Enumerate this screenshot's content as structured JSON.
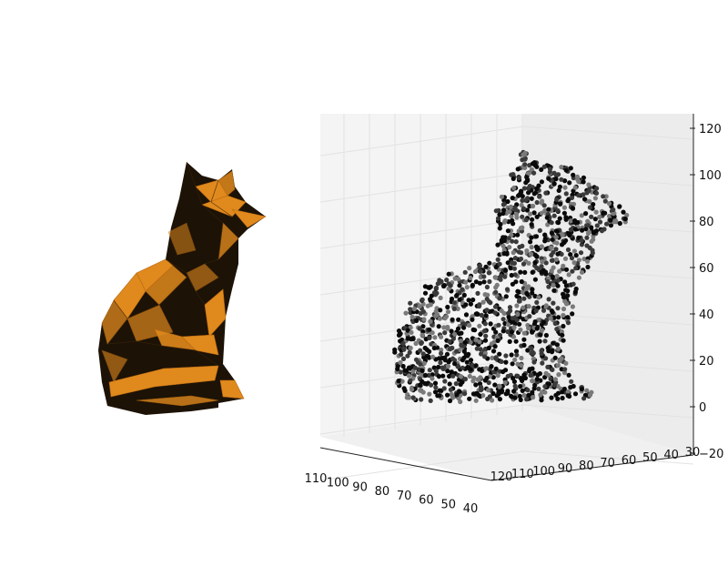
{
  "colors": {
    "mesh_orange": "#e08a1e",
    "mesh_dark": "#1a1005",
    "points": "#111111",
    "pane": "#f2f2f2",
    "grid": "#e3e3e3"
  },
  "figure": {
    "left_panel": "3d-mesh-render",
    "right_panel": "3d-point-cloud"
  },
  "chart_data": {
    "type": "scatter",
    "subtype": "3d-scatter",
    "title": "",
    "xlabel": "",
    "ylabel": "",
    "zlabel": "",
    "grid": true,
    "x_ticks": [
      "110",
      "100",
      "90",
      "80",
      "70",
      "60",
      "50",
      "40"
    ],
    "y_ticks": [
      "120",
      "110",
      "100",
      "90",
      "80",
      "70",
      "60",
      "50",
      "40",
      "30"
    ],
    "z_ticks": [
      "120",
      "100",
      "80",
      "60",
      "40",
      "20",
      "0",
      "−20"
    ],
    "xlim": [
      40,
      110
    ],
    "ylim": [
      30,
      120
    ],
    "zlim": [
      -20,
      120
    ],
    "series": [
      {
        "approx_point_count": 2000,
        "shape": "seated cat point cloud",
        "body": {
          "x_range": [
            50,
            110
          ],
          "y_range": [
            60,
            110
          ],
          "z_range": [
            0,
            55
          ]
        },
        "head": {
          "x_range": [
            40,
            60
          ],
          "y_range": [
            30,
            60
          ],
          "z_range": [
            60,
            105
          ]
        }
      }
    ]
  }
}
